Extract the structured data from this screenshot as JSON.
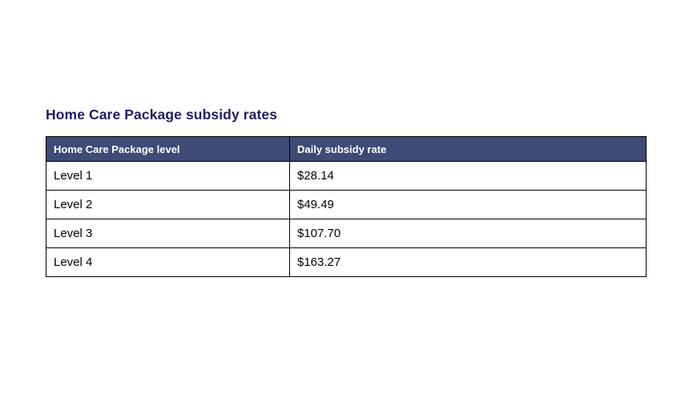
{
  "title": {
    "text": "Home Care Package subsidy rates",
    "color": "#221c63"
  },
  "table": {
    "header_bg": "#3e4b77",
    "header_text_color": "#ffffff",
    "border_color": "#000000",
    "columns": [
      {
        "label": "Home Care Package level"
      },
      {
        "label": "Daily subsidy rate"
      }
    ],
    "rows": [
      {
        "level": "Level 1",
        "rate": "$28.14"
      },
      {
        "level": "Level 2",
        "rate": "$49.49"
      },
      {
        "level": "Level 3",
        "rate": "$107.70"
      },
      {
        "level": "Level 4",
        "rate": "$163.27"
      }
    ]
  }
}
